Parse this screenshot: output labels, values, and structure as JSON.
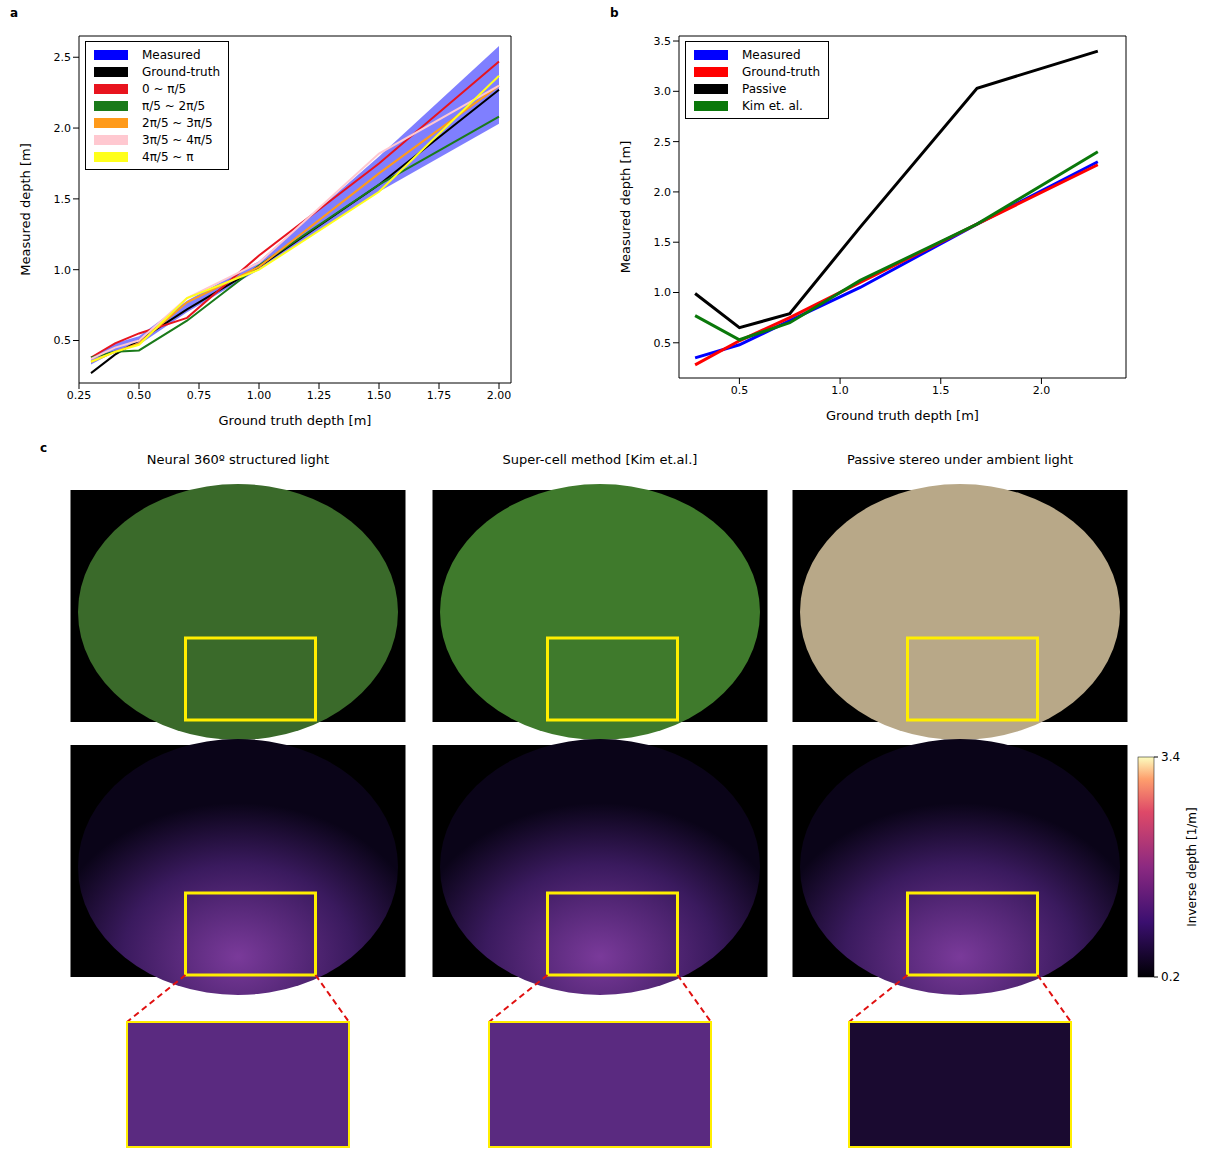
{
  "chart_data": [
    {
      "panel": "a",
      "type": "line",
      "x_label": "Ground truth depth [m]",
      "y_label": "Measured depth [m]",
      "x": [
        0.3,
        0.4,
        0.5,
        0.7,
        1.0,
        1.5,
        2.0
      ],
      "xlim": [
        0.25,
        2.05
      ],
      "xticks": [
        {
          "value": 0.25,
          "label": "0.25"
        },
        {
          "value": 0.5,
          "label": "0.50"
        },
        {
          "value": 0.75,
          "label": "0.75"
        },
        {
          "value": 1.0,
          "label": "1.00"
        },
        {
          "value": 1.25,
          "label": "1.25"
        },
        {
          "value": 1.5,
          "label": "1.50"
        },
        {
          "value": 1.75,
          "label": "1.75"
        },
        {
          "value": 2.0,
          "label": "2.00"
        }
      ],
      "ylim": [
        0.2,
        2.65
      ],
      "yticks": [
        0.5,
        {
          "value": 1.0,
          "label": "1.0"
        },
        1.5,
        {
          "value": 2.0,
          "label": "2.0"
        },
        2.5
      ],
      "legend": "upper left",
      "series": [
        {
          "name": "Measured",
          "type": "band",
          "color": "#0000ff",
          "lower": [
            0.33,
            0.42,
            0.47,
            0.7,
            1.0,
            1.55,
            2.03
          ],
          "upper": [
            0.38,
            0.48,
            0.53,
            0.78,
            1.06,
            1.8,
            2.58
          ]
        },
        {
          "name": "Ground-truth",
          "color": "#000000",
          "values": [
            0.27,
            0.4,
            0.5,
            0.72,
            1.02,
            1.6,
            2.27
          ]
        },
        {
          "name": "0 ~ π/5",
          "color": "#e8141e",
          "values": [
            0.38,
            0.48,
            0.55,
            0.66,
            1.1,
            1.75,
            2.47
          ]
        },
        {
          "name": "π/5 ~ 2π/5",
          "color": "#1a7a1a",
          "values": [
            0.38,
            0.42,
            0.43,
            0.64,
            1.03,
            1.6,
            2.08
          ]
        },
        {
          "name": "2π/5 ~ 3π/5",
          "color": "#ff9a1a",
          "values": [
            0.35,
            0.42,
            0.48,
            0.77,
            1.02,
            1.68,
            2.3
          ]
        },
        {
          "name": "3π/5 ~ 4π/5",
          "color": "#ffc8d0",
          "values": [
            0.37,
            0.45,
            0.5,
            0.8,
            1.05,
            1.82,
            2.3
          ]
        },
        {
          "name": "4π/5 ~ π",
          "color": "#ffff1a",
          "values": [
            0.35,
            0.42,
            0.47,
            0.8,
            1.0,
            1.55,
            2.37
          ]
        }
      ]
    },
    {
      "panel": "b",
      "type": "line",
      "x_label": "Ground truth depth [m]",
      "y_label": "Measured depth [m]",
      "x": [
        0.28,
        0.5,
        0.75,
        1.1,
        1.68,
        2.28
      ],
      "xlim": [
        0.2,
        2.42
      ],
      "xticks": [
        0.5,
        {
          "value": 1.0,
          "label": "1.0"
        },
        1.5,
        {
          "value": 2.0,
          "label": "2.0"
        }
      ],
      "ylim": [
        0.15,
        3.55
      ],
      "yticks": [
        0.5,
        {
          "value": 1.0,
          "label": "1.0"
        },
        1.5,
        {
          "value": 2.0,
          "label": "2.0"
        },
        2.5,
        {
          "value": 3.0,
          "label": "3.0"
        },
        3.5
      ],
      "legend": "upper left",
      "series": [
        {
          "name": "Measured",
          "color": "#0000ff",
          "values": [
            0.35,
            0.48,
            0.72,
            1.05,
            1.68,
            2.3
          ]
        },
        {
          "name": "Ground-truth",
          "color": "#ff0000",
          "values": [
            0.28,
            0.52,
            0.75,
            1.1,
            1.68,
            2.27
          ]
        },
        {
          "name": "Passive",
          "color": "#000000",
          "values": [
            0.99,
            0.65,
            0.79,
            1.65,
            3.03,
            3.4
          ]
        },
        {
          "name": "Kim et. al.",
          "color": "#0a780a",
          "values": [
            0.77,
            0.53,
            0.7,
            1.12,
            1.68,
            2.4
          ]
        }
      ]
    }
  ],
  "panel_c": {
    "panel": "c",
    "titles": [
      "Neural 360º structured light",
      "Super-cell method [Kim et.al.]",
      "Passive stereo under ambient light"
    ],
    "colorbar": {
      "label": "Inverse depth [1/m]",
      "range": [
        0.2,
        3.4
      ],
      "ticks": [
        3.4,
        0.2
      ]
    }
  }
}
